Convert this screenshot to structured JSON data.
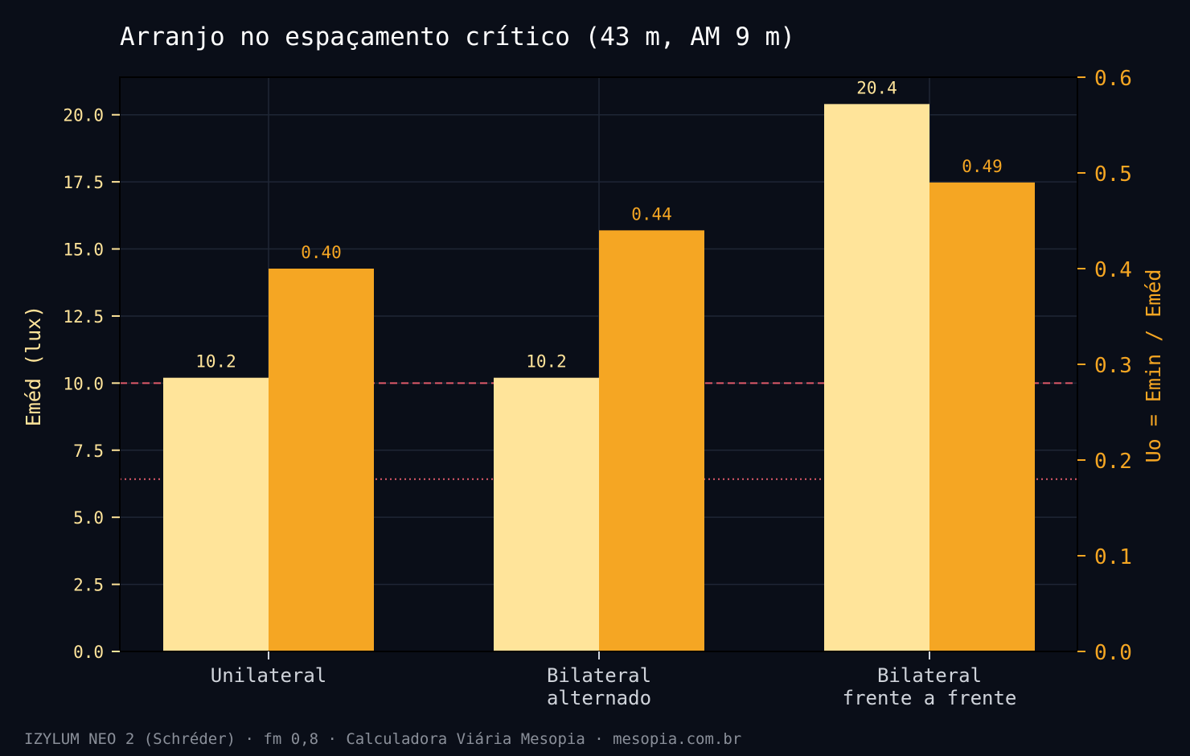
{
  "chart_data": {
    "type": "bar",
    "title": "Arranjo no espaçamento crítico (43 m, AM 9 m)",
    "categories": [
      [
        "Unilateral"
      ],
      [
        "Bilateral",
        "alternado"
      ],
      [
        "Bilateral",
        "frente a frente"
      ]
    ],
    "series": [
      {
        "values": [
          10.2,
          10.2,
          20.4
        ],
        "labels": [
          "10.2",
          "10.2",
          "20.4"
        ],
        "color": "#ffe49a",
        "axis": "left"
      },
      {
        "values": [
          0.4,
          0.44,
          0.49
        ],
        "labels": [
          "0.40",
          "0.44",
          "0.49"
        ],
        "color": "#f5a623",
        "axis": "right"
      }
    ],
    "ylabel": "Eméd (lux)",
    "y2label": "Uo = Emin / Eméd",
    "ylim": [
      0,
      21.4
    ],
    "y2lim": [
      0,
      0.6
    ],
    "yticks": [
      "0.0",
      "2.5",
      "5.0",
      "7.5",
      "10.0",
      "12.5",
      "15.0",
      "17.5",
      "20.0"
    ],
    "y2ticks": [
      "0.0",
      "0.1",
      "0.2",
      "0.3",
      "0.4",
      "0.5",
      "0.6"
    ],
    "reference_lines": [
      {
        "axis": "left",
        "value": 10.0,
        "style": "dashed",
        "color": "#e05a6a"
      },
      {
        "axis": "right",
        "value": 0.18,
        "style": "dotted",
        "color": "#e05a6a"
      }
    ],
    "grid": true
  },
  "footer": "IZYLUM NEO 2 (Schréder) · fm 0,8 · Calculadora Viária Mesopia · mesopia.com.br",
  "colors": {
    "background": "#0a0e18",
    "grid": "#1f2635"
  }
}
